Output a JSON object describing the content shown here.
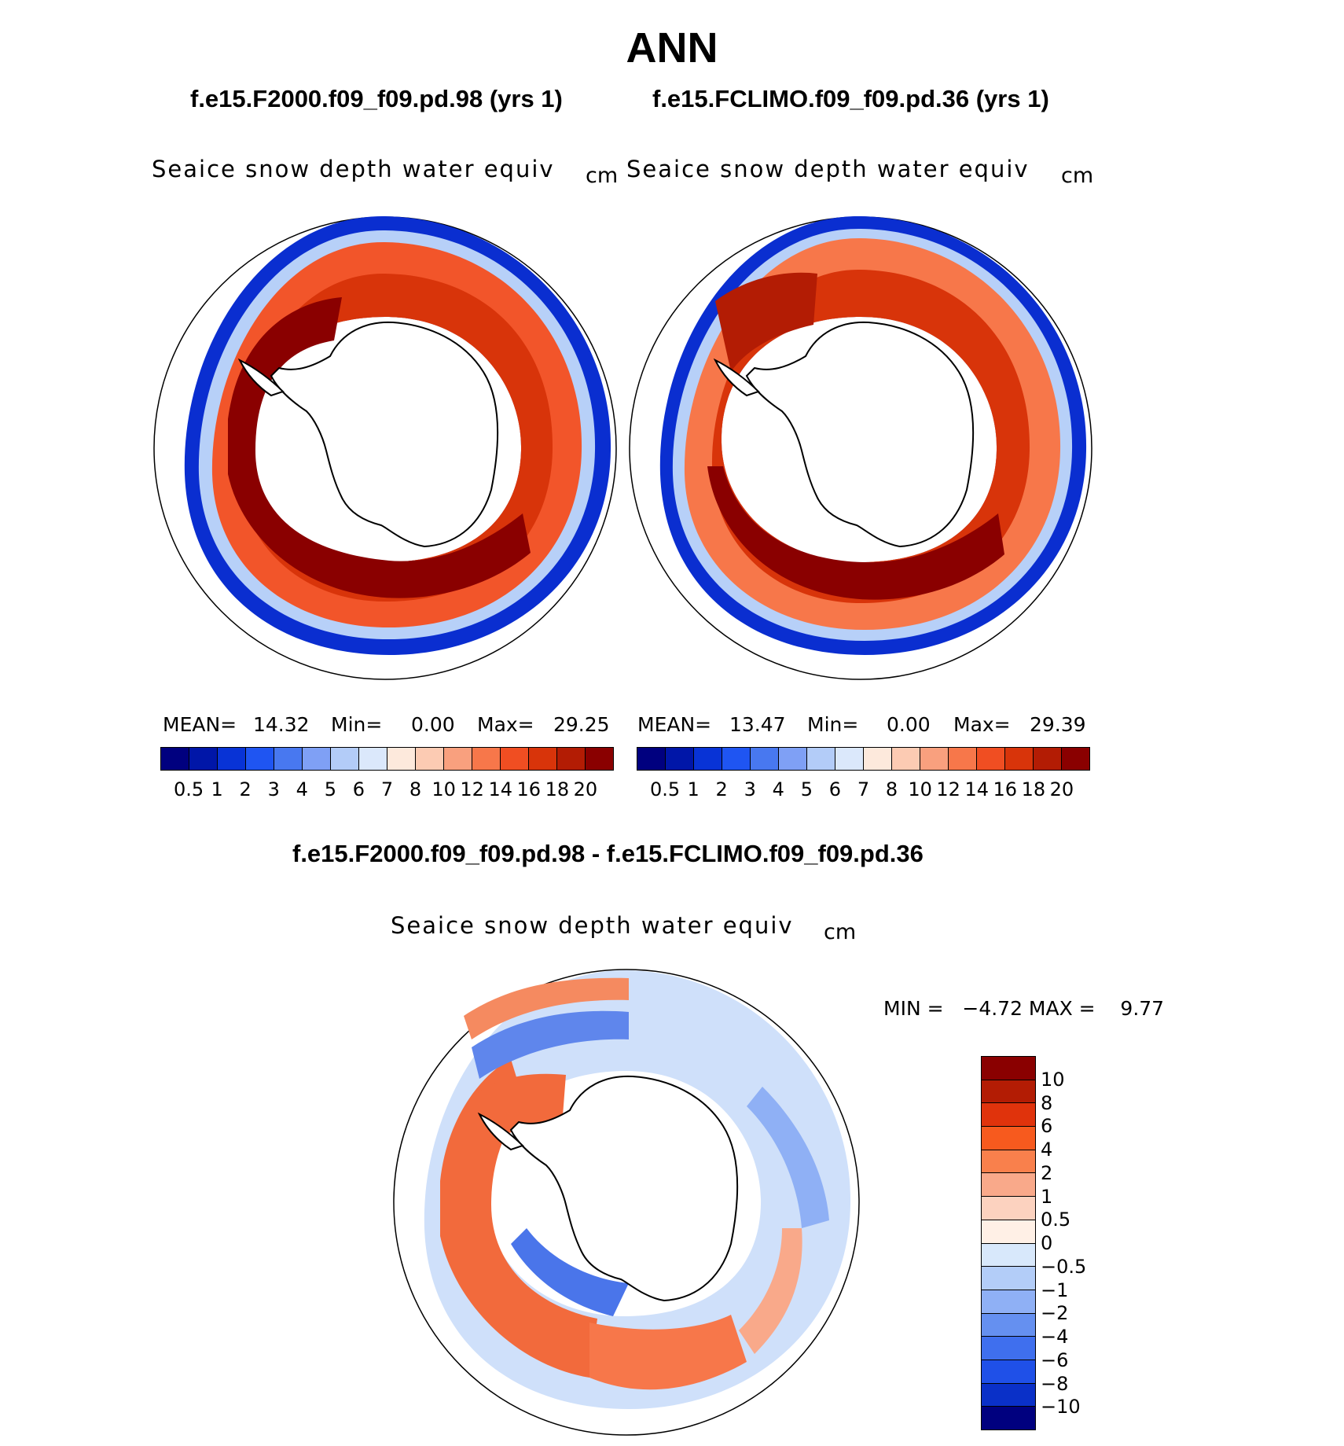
{
  "title": "ANN",
  "panel_left": {
    "case": "f.e15.F2000.f09_f09.pd.98 (yrs 1)",
    "variable": "Seaice snow depth water equiv",
    "units": "cm",
    "mean_label": "MEAN=",
    "mean": "14.32",
    "min_label": "Min=",
    "min": "0.00",
    "max_label": "Max=",
    "max": "29.25"
  },
  "panel_right": {
    "case": "f.e15.FCLIMO.f09_f09.pd.36 (yrs 1)",
    "variable": "Seaice snow depth water equiv",
    "units": "cm",
    "mean_label": "MEAN=",
    "mean": "13.47",
    "min_label": "Min=",
    "min": "0.00",
    "max_label": "Max=",
    "max": "29.39"
  },
  "panel_diff": {
    "case": "f.e15.F2000.f09_f09.pd.98 - f.e15.FCLIMO.f09_f09.pd.36",
    "variable": "Seaice snow depth water equiv",
    "units": "cm",
    "minmax_text": "MIN =   −4.72 MAX =    9.77"
  },
  "abs_colorbar": {
    "colors": [
      "#00007f",
      "#0016a8",
      "#0833d6",
      "#1f55f2",
      "#4878f0",
      "#7fa0f5",
      "#b3ccf8",
      "#dbe8fb",
      "#fde9dc",
      "#fccbb3",
      "#f9a07e",
      "#f7774a",
      "#f04e22",
      "#d8340a",
      "#b31c04",
      "#8a0000"
    ],
    "labels": [
      "0.5",
      "1",
      "2",
      "3",
      "4",
      "5",
      "6",
      "7",
      "8",
      "10",
      "12",
      "14",
      "16",
      "18",
      "20"
    ]
  },
  "diff_colorbar": {
    "colors": [
      "#8a0000",
      "#b31c04",
      "#e0330c",
      "#f75a1e",
      "#f9804c",
      "#f9a98a",
      "#fcd2bf",
      "#fff0e6",
      "#d8e8fb",
      "#b3cdf8",
      "#8fb0f5",
      "#6590f0",
      "#3f6fee",
      "#1f50e8",
      "#0a30c8",
      "#00007f"
    ],
    "labels": [
      "10",
      "8",
      "6",
      "4",
      "2",
      "1",
      "0.5",
      "0",
      "−0.5",
      "−1",
      "−2",
      "−4",
      "−6",
      "−8",
      "−10"
    ]
  }
}
